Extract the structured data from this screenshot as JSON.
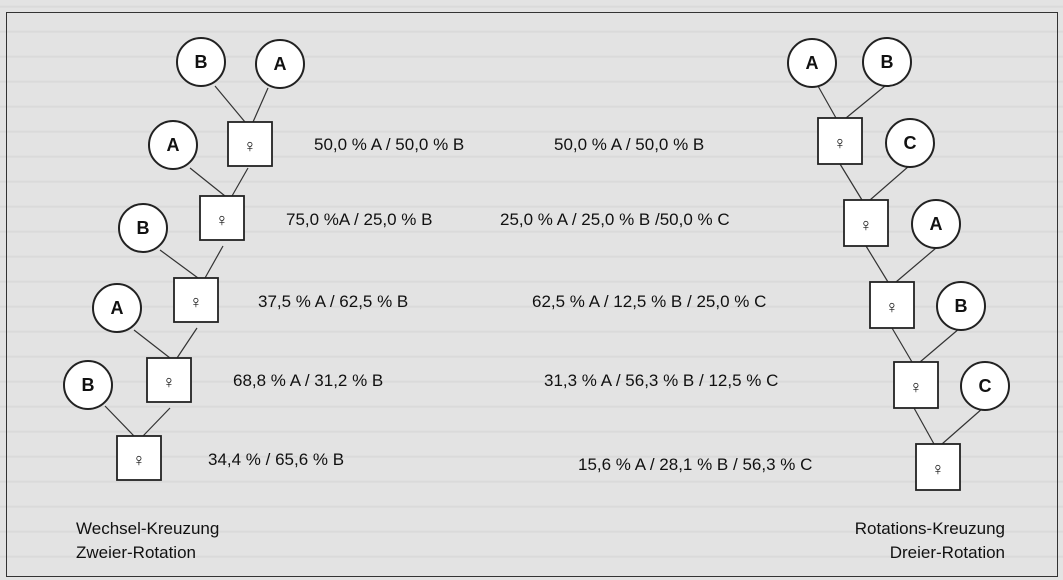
{
  "left": {
    "circles": [
      "B",
      "A",
      "A",
      "B",
      "A",
      "B"
    ],
    "percentages": [
      "50,0 % A / 50,0 % B",
      "75,0 %A / 25,0 % B",
      "37,5 % A / 62,5 % B",
      "68,8 % A / 31,2 % B",
      "34,4 %  / 65,6 % B"
    ],
    "caption_line1": "Wechsel-Kreuzung",
    "caption_line2": "Zweier-Rotation"
  },
  "right": {
    "circles": [
      "A",
      "B",
      "C",
      "A",
      "B",
      "C"
    ],
    "percentages": [
      "50,0 % A / 50,0 % B",
      "25,0 % A / 25,0 % B /50,0 % C",
      "62,5 % A / 12,5 % B / 25,0 % C",
      "31,3 % A / 56,3 % B / 12,5 % C",
      "15,6 % A / 28,1 % B / 56,3 % C"
    ],
    "caption_line1": "Rotations-Kreuzung",
    "caption_line2": "Dreier-Rotation"
  },
  "female_symbol": "♀"
}
